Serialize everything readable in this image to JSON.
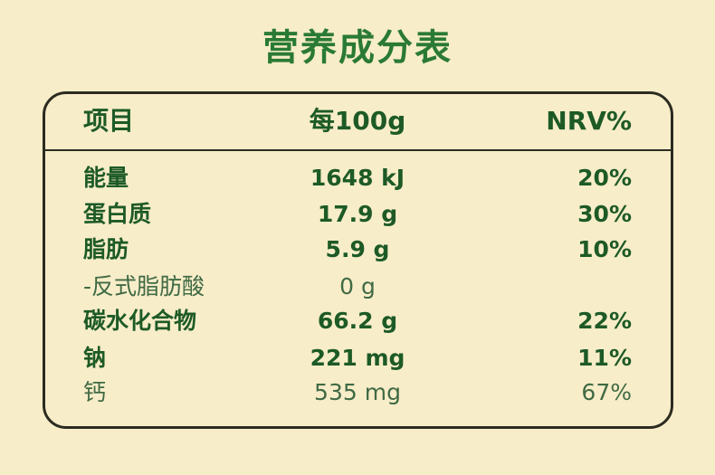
{
  "title": "营养成分表",
  "table": {
    "header": [
      "项目",
      "每100g",
      "NRV%"
    ],
    "rows": [
      [
        "能量",
        "1648 kJ",
        "20%"
      ],
      [
        "蛋白质",
        "17.9 g",
        "30%"
      ],
      [
        "脂肪",
        "5.9 g",
        "10%"
      ],
      [
        "-反式脂肪酸",
        "0 g"
      ],
      [
        "碳水化合物",
        "66.2 g",
        "22%"
      ],
      [
        "钠",
        "221 mg",
        "11%"
      ],
      [
        "钙",
        "535 mg",
        "67%"
      ]
    ],
    "light_rows": [
      3,
      6
    ]
  }
}
